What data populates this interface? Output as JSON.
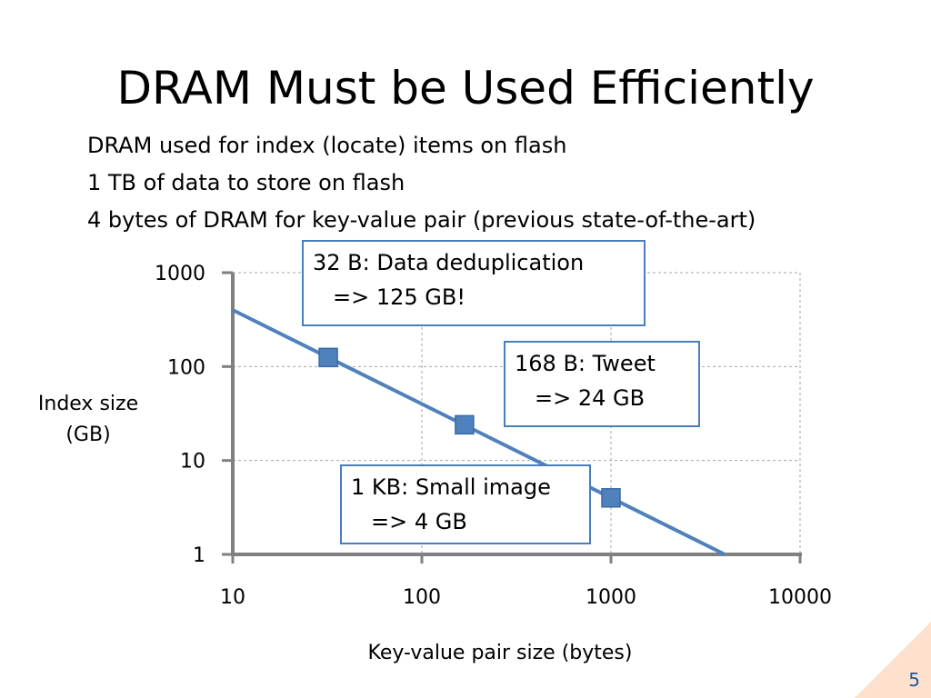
{
  "slide": {
    "title": "DRAM Must be Used Efficiently",
    "bullets": [
      "DRAM used for index (locate) items on flash",
      "1 TB of data to store on flash",
      "4 bytes of DRAM for key-value pair (previous state-of-the-art)"
    ],
    "page_number": "5"
  },
  "callouts": [
    {
      "line1": "32 B: Data deduplication",
      "line2": "=> 125 GB!"
    },
    {
      "line1": "168 B: Tweet",
      "line2": "=> 24 GB"
    },
    {
      "line1": "1 KB: Small image",
      "line2": "=> 4 GB"
    }
  ],
  "colors": {
    "series": "#4f81bd",
    "axis": "#808080",
    "callout_border": "#4a7ebb",
    "corner": "#fde1cc",
    "page_number": "#1f5aa6"
  },
  "chart_data": {
    "type": "line",
    "xlabel": "Key-value pair size (bytes)",
    "ylabel": "Index size (GB)",
    "xscale": "log",
    "yscale": "log",
    "xlim": [
      10,
      10000
    ],
    "ylim": [
      1,
      1000
    ],
    "xticks": [
      "10",
      "100",
      "1000",
      "10000"
    ],
    "yticks": [
      "1",
      "10",
      "100",
      "1000"
    ],
    "grid": true,
    "series": [
      {
        "line": [
          [
            10,
            400
          ],
          [
            4000,
            1
          ]
        ],
        "markers": [
          [
            32,
            125
          ],
          [
            168,
            24
          ],
          [
            1000,
            4
          ]
        ]
      }
    ]
  }
}
